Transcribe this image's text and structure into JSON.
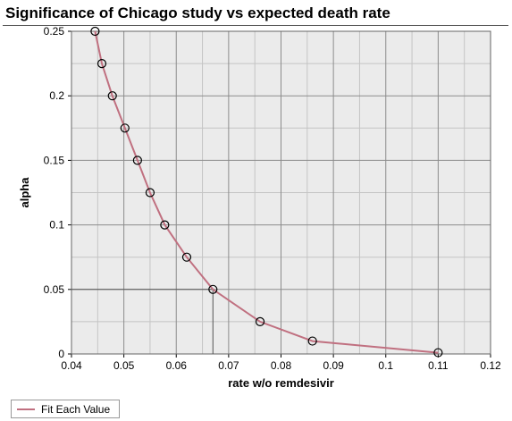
{
  "chart_data": {
    "type": "line",
    "title": "Significance of Chicago study vs expected death rate",
    "xlabel": "rate w/o remdesivir",
    "ylabel": "alpha",
    "xlim": [
      0.04,
      0.12
    ],
    "ylim": [
      0,
      0.25
    ],
    "x_ticks": [
      "0.04",
      "0.05",
      "0.06",
      "0.07",
      "0.08",
      "0.09",
      "0.1",
      "0.11",
      "0.12"
    ],
    "y_ticks": [
      "0",
      "0.05",
      "0.1",
      "0.15",
      "0.2",
      "0.25"
    ],
    "minor_grid": {
      "x_step": 0.005,
      "y_step": 0.025
    },
    "grid": true,
    "legend_position": "bottom-left",
    "series": [
      {
        "name": "Fit Each Value",
        "line_color": "#c07080",
        "x": [
          0.0445,
          0.0458,
          0.0478,
          0.0502,
          0.0526,
          0.055,
          0.0578,
          0.062,
          0.067,
          0.076,
          0.086,
          0.11
        ],
        "values": [
          0.25,
          0.225,
          0.2,
          0.175,
          0.15,
          0.125,
          0.1,
          0.075,
          0.05,
          0.025,
          0.01,
          0.001
        ]
      }
    ],
    "reference": {
      "x": 0.067,
      "y": 0.05,
      "color": "#555555"
    },
    "colors": {
      "plot_background": "#ebebeb",
      "major_grid": "#8c8c8c",
      "minor_grid": "#c4c4c4",
      "marker_stroke": "#000000"
    }
  }
}
